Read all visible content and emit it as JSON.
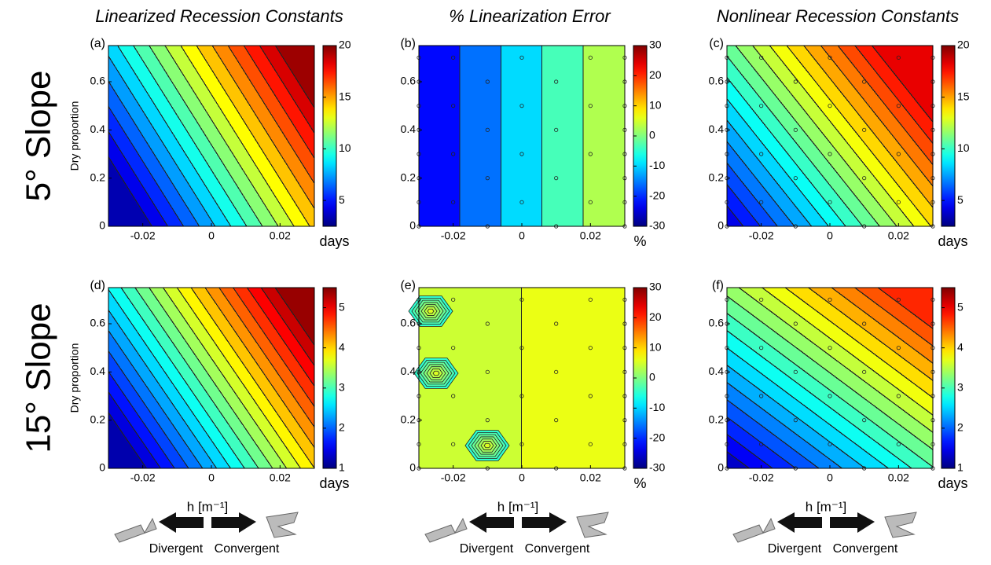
{
  "column_titles": [
    "Linearized Recession Constants",
    "% Linearization Error",
    "Nonlinear Recession Constants"
  ],
  "row_labels": [
    "5° Slope",
    "15° Slope"
  ],
  "y_label": "Dry proportion",
  "legend": {
    "axis_label": "h [m⁻¹]",
    "left": "Divergent",
    "right": "Convergent"
  },
  "chart_data": [
    {
      "type": "contour",
      "panel_label": "(a)",
      "xlim": [
        -0.03,
        0.03
      ],
      "xticks": [
        -0.02,
        0,
        0.02
      ],
      "ylim": [
        0,
        0.75
      ],
      "yticks": [
        0,
        0.2,
        0.4,
        0.6
      ],
      "clim": [
        2.5,
        20
      ],
      "cticks": [
        5,
        10,
        15,
        20
      ],
      "unit": "days"
    },
    {
      "type": "contour",
      "panel_label": "(b)",
      "xlim": [
        -0.03,
        0.03
      ],
      "xticks": [
        -0.02,
        0,
        0.02
      ],
      "ylim": [
        0,
        0.75
      ],
      "yticks": [
        0,
        0.2,
        0.4,
        0.6
      ],
      "clim": [
        -30,
        30
      ],
      "cticks": [
        -30,
        -20,
        -10,
        0,
        10,
        20,
        30
      ],
      "unit": "%"
    },
    {
      "type": "contour",
      "panel_label": "(c)",
      "xlim": [
        -0.03,
        0.03
      ],
      "xticks": [
        -0.02,
        0,
        0.02
      ],
      "ylim": [
        0,
        0.75
      ],
      "yticks": [
        0,
        0.2,
        0.4,
        0.6
      ],
      "clim": [
        2.5,
        20
      ],
      "cticks": [
        5,
        10,
        15,
        20
      ],
      "unit": "days"
    },
    {
      "type": "contour",
      "panel_label": "(d)",
      "xlim": [
        -0.03,
        0.03
      ],
      "xticks": [
        -0.02,
        0,
        0.02
      ],
      "ylim": [
        0,
        0.75
      ],
      "yticks": [
        0,
        0.2,
        0.4,
        0.6
      ],
      "clim": [
        1,
        5.5
      ],
      "cticks": [
        1,
        2,
        3,
        4,
        5
      ],
      "unit": "days"
    },
    {
      "type": "contour",
      "panel_label": "(e)",
      "xlim": [
        -0.03,
        0.03
      ],
      "xticks": [
        -0.02,
        0,
        0.02
      ],
      "ylim": [
        0,
        0.75
      ],
      "yticks": [
        0,
        0.2,
        0.4,
        0.6
      ],
      "clim": [
        -30,
        30
      ],
      "cticks": [
        -30,
        -20,
        -10,
        0,
        10,
        20,
        30
      ],
      "unit": "%"
    },
    {
      "type": "contour",
      "panel_label": "(f)",
      "xlim": [
        -0.03,
        0.03
      ],
      "xticks": [
        -0.02,
        0,
        0.02
      ],
      "ylim": [
        0,
        0.75
      ],
      "yticks": [
        0,
        0.2,
        0.4,
        0.6
      ],
      "clim": [
        1,
        5.5
      ],
      "cticks": [
        1,
        2,
        3,
        4,
        5
      ],
      "unit": "days"
    }
  ]
}
